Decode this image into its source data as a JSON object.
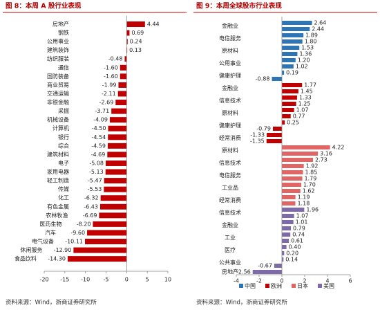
{
  "chart_data": [
    {
      "type": "bar",
      "orientation": "horizontal",
      "title": "图 8：本周 A 股行业表现",
      "categories": [
        "房地产",
        "钢铁",
        "公用事业",
        "建筑装饰",
        "纺织服装",
        "通信",
        "国防装备",
        "商业贸易",
        "交通运输",
        "非银金融",
        "采掘",
        "机械设备",
        "计算机",
        "银行",
        "综合",
        "建筑材料",
        "电子",
        "家用电器",
        "轻工制造",
        "传媒",
        "化工",
        "有色金属",
        "农林牧渔",
        "医药生物",
        "汽车",
        "电气设备",
        "休闲服务",
        "食品饮料"
      ],
      "values": [
        4.44,
        0.69,
        0.24,
        0.13,
        -0.48,
        -1.6,
        -1.6,
        -1.99,
        -2.11,
        -2.69,
        -3.71,
        -4.09,
        -4.5,
        -4.54,
        -4.59,
        -4.69,
        -5.08,
        -5.13,
        -5.47,
        -5.53,
        -6.32,
        -6.43,
        -6.69,
        -8.2,
        -9.6,
        -10.11,
        -12.9,
        -14.3
      ],
      "value_labels": [
        "4.44",
        "0.69",
        "0.24",
        "0.13",
        "-0.48",
        "-1.60",
        "-1.60",
        "-1.99",
        "-2.11",
        "-2.69",
        "-3.71",
        "-4.09",
        "-4.50",
        "-4.54",
        "-4.59",
        "-4.69",
        "-5.08",
        "-5.13",
        "-5.47",
        "-5.53",
        "-6.32",
        "-6.43",
        "-6.69",
        "-8.20",
        "-9.60",
        "-10.11",
        "-12.90",
        "-14.30"
      ],
      "color": "#c00000",
      "xlim": [
        -20,
        10
      ],
      "xticks": [
        -20,
        -15,
        -10,
        -5,
        0,
        5,
        10
      ],
      "source": "资料来源：Wind，浙商证券研究所"
    },
    {
      "type": "bar",
      "orientation": "horizontal",
      "title": "图 9：本周全球股市行业表现",
      "series": [
        {
          "name": "中国",
          "color": "#2e75b6",
          "categories": [
            "金融业",
            null,
            "电信服务",
            null,
            "原材料",
            null,
            "公用事业",
            null,
            "健康护理",
            null
          ],
          "values": [
            2.64,
            2.44,
            1.89,
            1.8,
            1.53,
            1.36,
            1.2,
            1.02,
            0.19,
            -0.88
          ],
          "value_labels": [
            "2.64",
            "2.44",
            "1.89",
            "1.80",
            "1.53",
            "1.36",
            "1.20",
            "1.02",
            "0.19",
            "-0.88"
          ]
        },
        {
          "name": "欧洲",
          "color": "#c00000",
          "categories": [
            "金融业",
            null,
            "信息技术",
            null,
            "原材料",
            null,
            "健康护理",
            null,
            "经常消费",
            null
          ],
          "values": [
            1.77,
            1.45,
            1.33,
            1.25,
            1.07,
            0.77,
            0.25,
            -0.79,
            -1.33,
            -1.35
          ],
          "value_labels": [
            "1.77",
            "1.45",
            "1.33",
            "1.25",
            "1.07",
            "0.77",
            "0.25",
            "-0.79",
            "-1.33",
            "-1.35"
          ]
        },
        {
          "name": "日本",
          "color": "#e06666",
          "categories": [
            "原材料",
            null,
            "信息技术",
            null,
            "电信服务",
            null,
            "工业品",
            null,
            "经常消费",
            null
          ],
          "values": [
            4.22,
            3.16,
            2.73,
            1.92,
            1.85,
            1.79,
            1.7,
            1.62,
            1.19,
            1.18
          ],
          "value_labels": [
            "4.22",
            "3.16",
            "2.73",
            "1.92",
            "1.85",
            "1.79",
            "1.70",
            "1.62",
            "1.19",
            "1.18"
          ]
        },
        {
          "name": "美国",
          "color": "#7f6aa8",
          "categories": [
            "信息技术",
            null,
            "金融业",
            null,
            "工业",
            null,
            "医疗",
            null,
            "公共事业",
            null,
            "房地产"
          ],
          "values": [
            1.96,
            1.07,
            1.01,
            0.79,
            0.74,
            0.61,
            0.4,
            0.2,
            0.14,
            -0.67,
            -2.56
          ],
          "value_labels": [
            "1.96",
            "1.07",
            "1.01",
            "0.79",
            "0.74",
            "0.61",
            "0.40",
            "0.20",
            "0.14",
            "-0.67",
            "-2.56"
          ]
        }
      ],
      "xlim": [
        -4,
        6
      ],
      "xticks": [
        -4,
        -2,
        0,
        2,
        4,
        6
      ],
      "source": "资料来源：Wind，浙商证券研究所"
    }
  ]
}
